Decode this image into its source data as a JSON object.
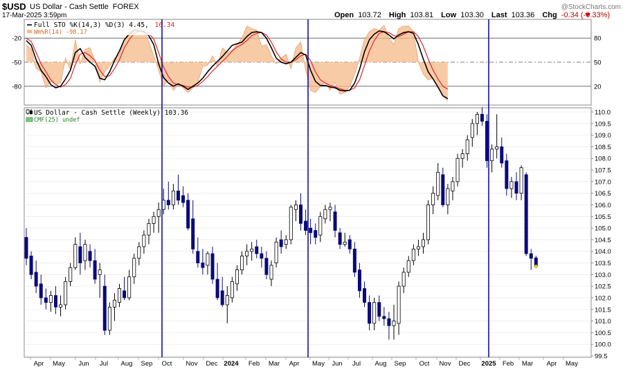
{
  "header": {
    "symbol": "$USD",
    "name": "US Dollar - Cash Settle",
    "exchange": "FOREX",
    "date": "17-Mar-2025 3:59pm",
    "open_label": "Open",
    "open": "103.72",
    "high_label": "High",
    "high": "103.81",
    "low_label": "Low",
    "low": "103.30",
    "last_label": "Last",
    "last": "103.36",
    "chg_label": "Chg",
    "chg": "-0.34 (-0.33%)",
    "watermark": "@StockCharts.com"
  },
  "colors": {
    "up_body": "#ffffff",
    "down_body": "#0a0a7a",
    "candle_line": "#000000",
    "pctk": "#000000",
    "pctd": "#e8202a",
    "willr_fill": "#f5b98a",
    "willr_line": "#e9a06a",
    "vline": "#1010a0",
    "last_marker": "#f0d000",
    "chg_red": "#c00000"
  },
  "lower_panel": {
    "legend_price": "US Dollar - Cash Settle (Weekly) 103.36",
    "legend_cmf": "CMF(25) undef",
    "legend_price_icon": "candle-icon",
    "legend_cmf_icon": "area-icon"
  },
  "chart_data": [
    {
      "type": "line",
      "title": "Full STO %K(14,3) %D(3) 4.45, 16.34",
      "legend": [
        "Full STO %K(14,3) %D(3) 4.45,",
        "16.34",
        "Wm%R(14) -98.17"
      ],
      "ylim": [
        0,
        100
      ],
      "left_ticks": [
        "-20",
        "-50",
        "-80"
      ],
      "right_ticks": [
        "80",
        "50",
        "20"
      ],
      "series": [
        {
          "name": "%K(14,3)",
          "values": [
            77,
            71,
            53,
            40,
            32,
            22,
            18,
            20,
            29,
            40,
            62,
            67,
            56,
            50,
            45,
            30,
            28,
            38,
            52,
            64,
            78,
            85,
            90,
            89,
            88,
            83,
            72,
            48,
            31,
            24,
            20,
            23,
            20,
            16,
            20,
            24,
            30,
            38,
            45,
            51,
            57,
            64,
            71,
            73,
            75,
            82,
            87,
            88,
            87,
            80,
            68,
            55,
            50,
            48,
            50,
            56,
            62,
            59,
            40,
            26,
            21,
            21,
            19,
            18,
            15,
            14,
            15,
            24,
            41,
            63,
            78,
            85,
            89,
            88,
            84,
            79,
            84,
            87,
            88,
            86,
            72,
            54,
            38,
            29,
            19,
            8,
            4.45
          ]
        },
        {
          "name": "%D(3)",
          "values": [
            80,
            76,
            62,
            48,
            38,
            28,
            22,
            19,
            22,
            30,
            47,
            60,
            62,
            58,
            52,
            40,
            32,
            33,
            42,
            53,
            68,
            78,
            86,
            89,
            89,
            86,
            79,
            62,
            44,
            32,
            24,
            22,
            21,
            19,
            19,
            21,
            26,
            32,
            39,
            45,
            51,
            57,
            64,
            69,
            72,
            77,
            83,
            86,
            87,
            84,
            75,
            63,
            54,
            50,
            50,
            53,
            58,
            60,
            52,
            38,
            28,
            24,
            21,
            19,
            17,
            15,
            15,
            18,
            28,
            46,
            64,
            77,
            86,
            88,
            87,
            83,
            82,
            85,
            88,
            88,
            82,
            70,
            54,
            40,
            29,
            20,
            16.34
          ]
        },
        {
          "name": "Wm%R(14)",
          "values": [
            72,
            66,
            42,
            38,
            18,
            26,
            22,
            24,
            55,
            40,
            78,
            48,
            66,
            68,
            52,
            25,
            38,
            45,
            55,
            60,
            78,
            88,
            95,
            92,
            90,
            75,
            58,
            40,
            20,
            28,
            15,
            22,
            18,
            12,
            18,
            25,
            45,
            46,
            58,
            45,
            68,
            62,
            65,
            72,
            80,
            95,
            92,
            90,
            70,
            72,
            58,
            48,
            55,
            60,
            42,
            68,
            75,
            40,
            15,
            12,
            20,
            25,
            15,
            25,
            10,
            12,
            20,
            35,
            55,
            78,
            88,
            92,
            90,
            96,
            80,
            72,
            92,
            95,
            95,
            88,
            50,
            35,
            28,
            30,
            18,
            8,
            1.83
          ]
        }
      ],
      "vertical_markers": [
        "Oct",
        "Apr",
        "2025"
      ]
    },
    {
      "type": "candlestick",
      "title": "US Dollar - Cash Settle (Weekly) 103.36",
      "ylim": [
        99.5,
        110.0
      ],
      "yticks": [
        "99.5",
        "100.0",
        "100.5",
        "101.0",
        "101.5",
        "102.0",
        "102.5",
        "103.0",
        "103.5",
        "104.0",
        "104.5",
        "105.0",
        "105.5",
        "106.0",
        "106.5",
        "107.0",
        "107.5",
        "108.0",
        "108.5",
        "109.0",
        "109.5",
        "110.0"
      ],
      "xticks": [
        "Apr",
        "May",
        "Jun",
        "Jul",
        "Aug",
        "Sep",
        "Oct",
        "Nov",
        "Dec",
        "2024",
        "Feb",
        "Mar",
        "Apr",
        "May",
        "Jun",
        "Jul",
        "Aug",
        "Sep",
        "Oct",
        "Nov",
        "Dec",
        "2025",
        "Feb",
        "Mar",
        "Apr",
        "May"
      ],
      "candles": [
        {
          "o": 104.6,
          "h": 105.0,
          "l": 103.4,
          "c": 103.7
        },
        {
          "o": 103.8,
          "h": 104.0,
          "l": 102.8,
          "c": 103.0
        },
        {
          "o": 103.1,
          "h": 103.6,
          "l": 102.2,
          "c": 102.5
        },
        {
          "o": 102.6,
          "h": 103.0,
          "l": 101.7,
          "c": 102.0
        },
        {
          "o": 102.0,
          "h": 102.4,
          "l": 101.5,
          "c": 101.8
        },
        {
          "o": 101.8,
          "h": 102.3,
          "l": 101.4,
          "c": 102.1
        },
        {
          "o": 102.1,
          "h": 102.5,
          "l": 101.3,
          "c": 101.6
        },
        {
          "o": 101.6,
          "h": 102.1,
          "l": 101.2,
          "c": 101.7
        },
        {
          "o": 101.7,
          "h": 102.9,
          "l": 101.5,
          "c": 102.7
        },
        {
          "o": 102.7,
          "h": 103.5,
          "l": 102.5,
          "c": 103.3
        },
        {
          "o": 103.3,
          "h": 104.6,
          "l": 103.2,
          "c": 104.3
        },
        {
          "o": 104.2,
          "h": 104.8,
          "l": 103.0,
          "c": 103.5
        },
        {
          "o": 103.6,
          "h": 104.5,
          "l": 103.2,
          "c": 104.3
        },
        {
          "o": 104.0,
          "h": 104.3,
          "l": 103.3,
          "c": 103.6
        },
        {
          "o": 103.6,
          "h": 104.1,
          "l": 102.6,
          "c": 102.8
        },
        {
          "o": 103.0,
          "h": 103.5,
          "l": 102.0,
          "c": 103.2
        },
        {
          "o": 102.5,
          "h": 103.0,
          "l": 100.4,
          "c": 100.6
        },
        {
          "o": 100.6,
          "h": 101.8,
          "l": 100.4,
          "c": 101.6
        },
        {
          "o": 101.6,
          "h": 102.2,
          "l": 101.0,
          "c": 101.9
        },
        {
          "o": 101.8,
          "h": 102.6,
          "l": 101.6,
          "c": 102.4
        },
        {
          "o": 102.3,
          "h": 102.9,
          "l": 101.9,
          "c": 102.0
        },
        {
          "o": 102.0,
          "h": 103.2,
          "l": 101.9,
          "c": 102.9
        },
        {
          "o": 102.9,
          "h": 103.9,
          "l": 102.6,
          "c": 103.7
        },
        {
          "o": 103.7,
          "h": 104.4,
          "l": 103.4,
          "c": 104.2
        },
        {
          "o": 104.2,
          "h": 104.9,
          "l": 103.9,
          "c": 104.7
        },
        {
          "o": 104.7,
          "h": 105.4,
          "l": 104.3,
          "c": 105.2
        },
        {
          "o": 105.2,
          "h": 105.7,
          "l": 104.8,
          "c": 105.5
        },
        {
          "o": 105.5,
          "h": 106.1,
          "l": 104.8,
          "c": 105.8
        },
        {
          "o": 105.8,
          "h": 106.7,
          "l": 105.6,
          "c": 106.2
        },
        {
          "o": 106.2,
          "h": 107.0,
          "l": 105.8,
          "c": 106.0
        },
        {
          "o": 106.0,
          "h": 106.9,
          "l": 105.8,
          "c": 106.6
        },
        {
          "o": 106.6,
          "h": 107.3,
          "l": 106.0,
          "c": 106.2
        },
        {
          "o": 106.4,
          "h": 106.8,
          "l": 105.9,
          "c": 106.1
        },
        {
          "o": 106.2,
          "h": 106.5,
          "l": 104.9,
          "c": 105.0
        },
        {
          "o": 105.4,
          "h": 106.2,
          "l": 103.9,
          "c": 104.1
        },
        {
          "o": 104.0,
          "h": 104.6,
          "l": 103.3,
          "c": 103.5
        },
        {
          "o": 103.5,
          "h": 104.1,
          "l": 103.0,
          "c": 103.3
        },
        {
          "o": 103.4,
          "h": 104.0,
          "l": 103.0,
          "c": 103.9
        },
        {
          "o": 103.9,
          "h": 104.2,
          "l": 102.6,
          "c": 102.8
        },
        {
          "o": 102.8,
          "h": 103.5,
          "l": 101.9,
          "c": 102.0
        },
        {
          "o": 102.3,
          "h": 102.9,
          "l": 101.6,
          "c": 101.7
        },
        {
          "o": 101.7,
          "h": 102.5,
          "l": 100.9,
          "c": 102.1
        },
        {
          "o": 102.0,
          "h": 102.9,
          "l": 101.8,
          "c": 102.7
        },
        {
          "o": 102.6,
          "h": 103.4,
          "l": 102.3,
          "c": 103.2
        },
        {
          "o": 103.2,
          "h": 104.0,
          "l": 103.0,
          "c": 103.8
        },
        {
          "o": 103.8,
          "h": 104.3,
          "l": 103.4,
          "c": 104.0
        },
        {
          "o": 104.0,
          "h": 104.4,
          "l": 103.6,
          "c": 104.1
        },
        {
          "o": 104.2,
          "h": 104.5,
          "l": 103.7,
          "c": 103.9
        },
        {
          "o": 103.9,
          "h": 104.2,
          "l": 103.3,
          "c": 103.7
        },
        {
          "o": 103.7,
          "h": 104.0,
          "l": 102.8,
          "c": 103.0
        },
        {
          "o": 102.8,
          "h": 103.6,
          "l": 102.5,
          "c": 103.4
        },
        {
          "o": 103.5,
          "h": 104.6,
          "l": 103.3,
          "c": 104.4
        },
        {
          "o": 104.5,
          "h": 104.9,
          "l": 103.9,
          "c": 104.2
        },
        {
          "o": 104.3,
          "h": 104.7,
          "l": 104.1,
          "c": 104.5
        },
        {
          "o": 104.5,
          "h": 106.0,
          "l": 104.3,
          "c": 105.9
        },
        {
          "o": 105.8,
          "h": 106.2,
          "l": 105.3,
          "c": 106.0
        },
        {
          "o": 106.0,
          "h": 106.5,
          "l": 104.9,
          "c": 105.2
        },
        {
          "o": 105.3,
          "h": 105.8,
          "l": 104.7,
          "c": 104.9
        },
        {
          "o": 105.0,
          "h": 105.4,
          "l": 104.3,
          "c": 104.8
        },
        {
          "o": 104.9,
          "h": 105.2,
          "l": 104.3,
          "c": 104.6
        },
        {
          "o": 104.7,
          "h": 105.7,
          "l": 104.4,
          "c": 105.5
        },
        {
          "o": 105.4,
          "h": 106.0,
          "l": 105.2,
          "c": 105.8
        },
        {
          "o": 105.8,
          "h": 106.1,
          "l": 105.3,
          "c": 105.9
        },
        {
          "o": 105.7,
          "h": 106.0,
          "l": 104.6,
          "c": 104.9
        },
        {
          "o": 104.8,
          "h": 105.0,
          "l": 104.1,
          "c": 104.3
        },
        {
          "o": 104.3,
          "h": 104.8,
          "l": 104.2,
          "c": 104.4
        },
        {
          "o": 104.5,
          "h": 104.7,
          "l": 103.9,
          "c": 104.1
        },
        {
          "o": 104.1,
          "h": 104.4,
          "l": 102.9,
          "c": 103.1
        },
        {
          "o": 103.2,
          "h": 103.5,
          "l": 102.0,
          "c": 102.3
        },
        {
          "o": 102.4,
          "h": 102.7,
          "l": 101.6,
          "c": 101.8
        },
        {
          "o": 101.8,
          "h": 102.1,
          "l": 100.6,
          "c": 100.9
        },
        {
          "o": 100.9,
          "h": 102.0,
          "l": 100.6,
          "c": 101.8
        },
        {
          "o": 101.8,
          "h": 102.1,
          "l": 101.0,
          "c": 101.2
        },
        {
          "o": 101.2,
          "h": 101.6,
          "l": 100.8,
          "c": 101.1
        },
        {
          "o": 101.1,
          "h": 101.4,
          "l": 100.2,
          "c": 100.8
        },
        {
          "o": 100.8,
          "h": 101.7,
          "l": 100.2,
          "c": 101.0
        },
        {
          "o": 100.9,
          "h": 102.7,
          "l": 100.4,
          "c": 102.5
        },
        {
          "o": 102.5,
          "h": 103.3,
          "l": 102.2,
          "c": 103.1
        },
        {
          "o": 103.1,
          "h": 103.8,
          "l": 102.9,
          "c": 103.6
        },
        {
          "o": 103.6,
          "h": 104.3,
          "l": 103.4,
          "c": 104.1
        },
        {
          "o": 104.1,
          "h": 104.5,
          "l": 103.8,
          "c": 104.2
        },
        {
          "o": 104.2,
          "h": 104.8,
          "l": 103.9,
          "c": 104.5
        },
        {
          "o": 104.5,
          "h": 106.2,
          "l": 104.3,
          "c": 106.0
        },
        {
          "o": 106.0,
          "h": 106.8,
          "l": 105.6,
          "c": 106.5
        },
        {
          "o": 106.4,
          "h": 107.8,
          "l": 106.2,
          "c": 107.4
        },
        {
          "o": 107.3,
          "h": 107.6,
          "l": 105.9,
          "c": 106.0
        },
        {
          "o": 106.0,
          "h": 106.9,
          "l": 105.6,
          "c": 106.7
        },
        {
          "o": 106.6,
          "h": 107.2,
          "l": 106.2,
          "c": 107.0
        },
        {
          "o": 107.0,
          "h": 108.2,
          "l": 106.8,
          "c": 108.0
        },
        {
          "o": 108.0,
          "h": 108.4,
          "l": 107.6,
          "c": 108.2
        },
        {
          "o": 108.2,
          "h": 109.0,
          "l": 107.9,
          "c": 108.8
        },
        {
          "o": 108.9,
          "h": 109.7,
          "l": 108.5,
          "c": 109.5
        },
        {
          "o": 109.5,
          "h": 110.0,
          "l": 109.0,
          "c": 109.9
        },
        {
          "o": 109.9,
          "h": 110.2,
          "l": 109.4,
          "c": 109.6
        },
        {
          "o": 109.6,
          "h": 109.9,
          "l": 107.6,
          "c": 107.9
        },
        {
          "o": 107.9,
          "h": 108.6,
          "l": 107.4,
          "c": 108.4
        },
        {
          "o": 108.4,
          "h": 109.9,
          "l": 108.0,
          "c": 108.5
        },
        {
          "o": 108.5,
          "h": 108.9,
          "l": 107.6,
          "c": 107.8
        },
        {
          "o": 107.9,
          "h": 108.2,
          "l": 106.4,
          "c": 106.7
        },
        {
          "o": 106.7,
          "h": 107.2,
          "l": 106.3,
          "c": 107.0
        },
        {
          "o": 107.0,
          "h": 107.4,
          "l": 106.2,
          "c": 106.5
        },
        {
          "o": 106.5,
          "h": 107.7,
          "l": 106.2,
          "c": 107.6
        },
        {
          "o": 107.3,
          "h": 107.4,
          "l": 103.8,
          "c": 103.9
        },
        {
          "o": 103.9,
          "h": 104.1,
          "l": 103.2,
          "c": 103.7
        },
        {
          "o": 103.72,
          "h": 103.81,
          "l": 103.3,
          "c": 103.36
        }
      ]
    }
  ]
}
